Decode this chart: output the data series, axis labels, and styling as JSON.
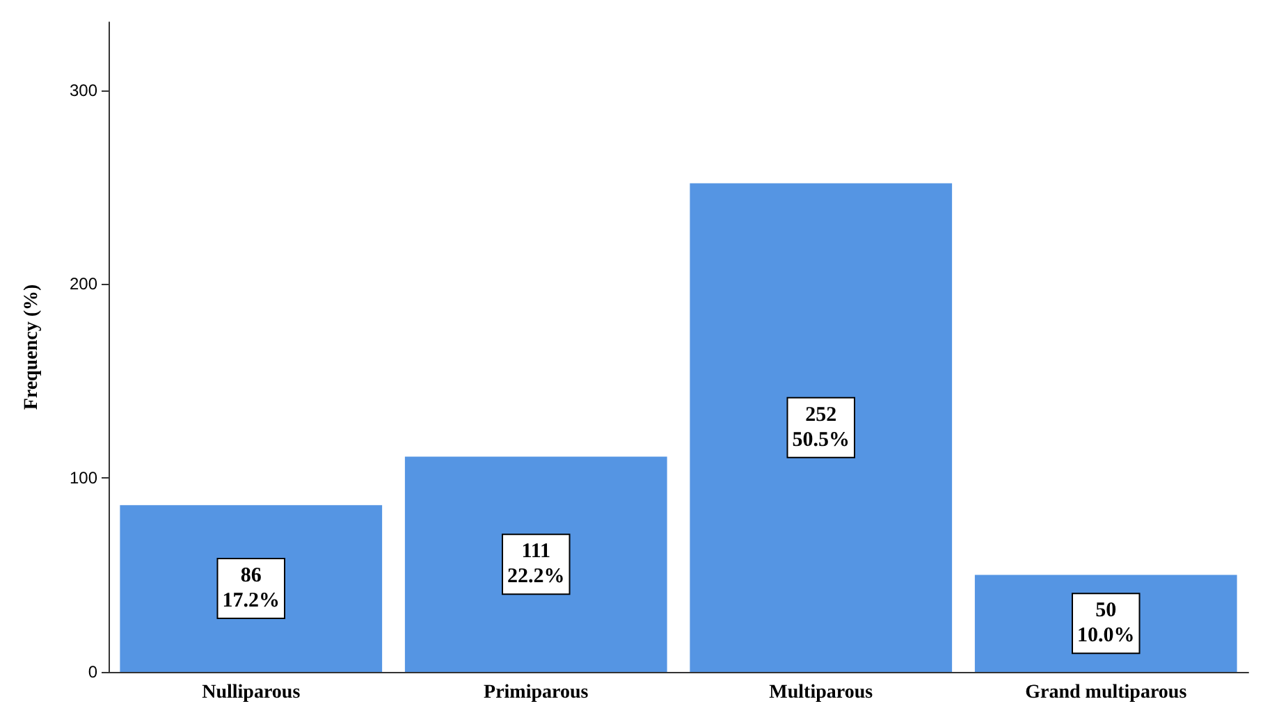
{
  "chart_data": {
    "type": "bar",
    "ylabel": "Frequency (%)",
    "categories": [
      "Nulliparous",
      "Primiparous",
      "Multiparous",
      "Grand multiparous"
    ],
    "values": [
      86,
      111,
      252,
      50
    ],
    "value_labels": [
      "86\n17.2%",
      "111\n22.2%",
      "252\n50.5%",
      "50\n10.0%"
    ],
    "color": "#5595e3",
    "ylim": [
      0,
      335
    ],
    "yticks": [
      0,
      100,
      200,
      300
    ],
    "grid": false
  }
}
